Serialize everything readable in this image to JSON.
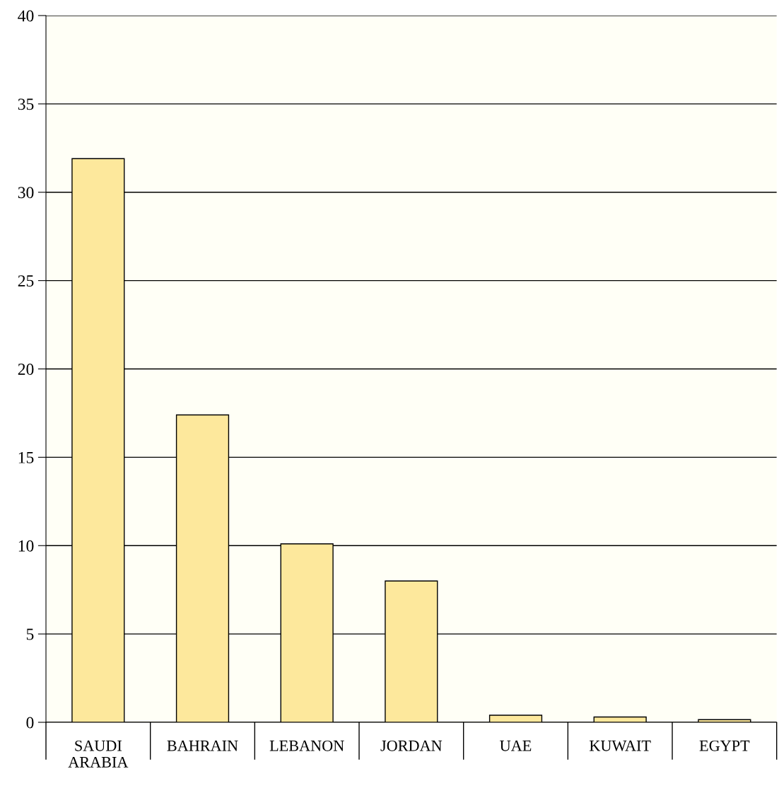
{
  "chart_data": {
    "type": "bar",
    "categories": [
      "SAUDI\nARABIA",
      "BAHRAIN",
      "LEBANON",
      "JORDAN",
      "UAE",
      "KUWAIT",
      "EGYPT"
    ],
    "values": [
      31.9,
      17.4,
      10.1,
      8.0,
      0.4,
      0.3,
      0.15
    ],
    "color": "#fde89c",
    "ylim": [
      0,
      40
    ],
    "yticks": [
      0,
      5,
      10,
      15,
      20,
      25,
      30,
      35,
      40
    ],
    "grid": "y"
  }
}
